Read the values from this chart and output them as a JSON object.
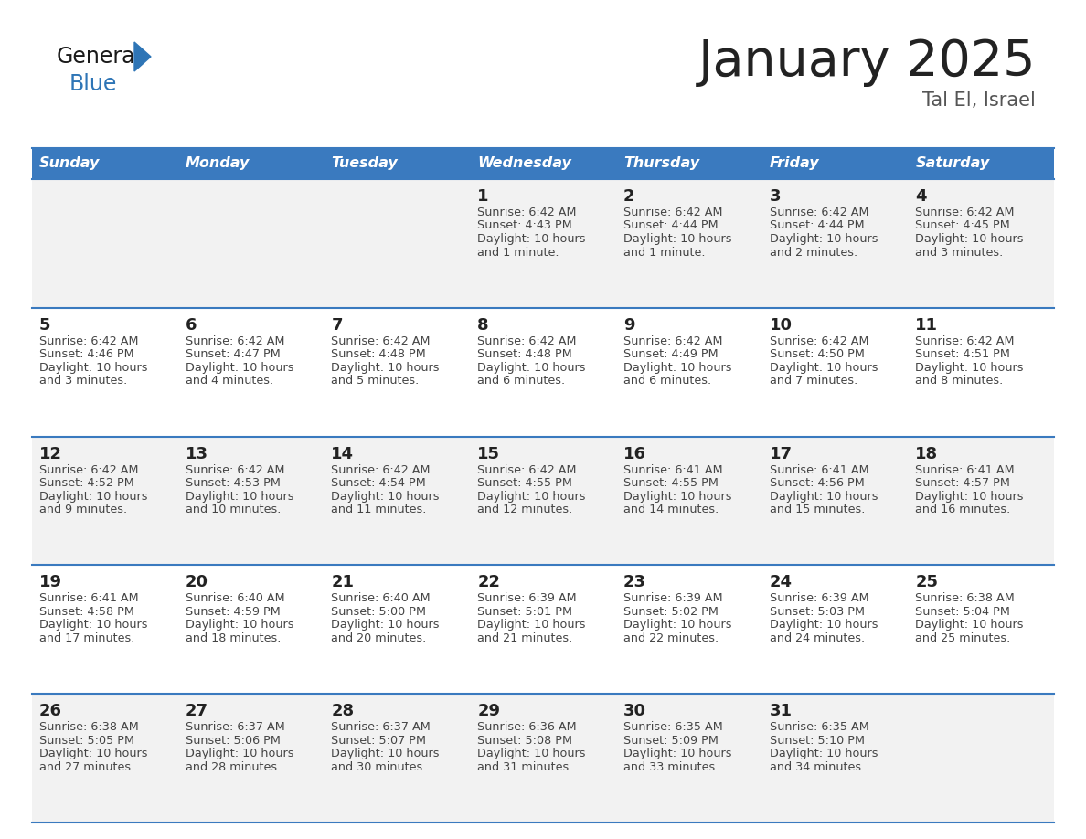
{
  "title": "January 2025",
  "subtitle": "Tal El, Israel",
  "header_bg": "#3a7abf",
  "header_text_color": "#ffffff",
  "cell_bg_odd": "#f2f2f2",
  "cell_bg_even": "#ffffff",
  "day_text_color": "#222222",
  "info_text_color": "#444444",
  "border_color": "#3a7abf",
  "days_of_week": [
    "Sunday",
    "Monday",
    "Tuesday",
    "Wednesday",
    "Thursday",
    "Friday",
    "Saturday"
  ],
  "calendar": [
    [
      {
        "day": null,
        "sunrise": null,
        "sunset": null,
        "daylight": null
      },
      {
        "day": null,
        "sunrise": null,
        "sunset": null,
        "daylight": null
      },
      {
        "day": null,
        "sunrise": null,
        "sunset": null,
        "daylight": null
      },
      {
        "day": 1,
        "sunrise": "6:42 AM",
        "sunset": "4:43 PM",
        "daylight": "10 hours and 1 minute."
      },
      {
        "day": 2,
        "sunrise": "6:42 AM",
        "sunset": "4:44 PM",
        "daylight": "10 hours and 1 minute."
      },
      {
        "day": 3,
        "sunrise": "6:42 AM",
        "sunset": "4:44 PM",
        "daylight": "10 hours and 2 minutes."
      },
      {
        "day": 4,
        "sunrise": "6:42 AM",
        "sunset": "4:45 PM",
        "daylight": "10 hours and 3 minutes."
      }
    ],
    [
      {
        "day": 5,
        "sunrise": "6:42 AM",
        "sunset": "4:46 PM",
        "daylight": "10 hours and 3 minutes."
      },
      {
        "day": 6,
        "sunrise": "6:42 AM",
        "sunset": "4:47 PM",
        "daylight": "10 hours and 4 minutes."
      },
      {
        "day": 7,
        "sunrise": "6:42 AM",
        "sunset": "4:48 PM",
        "daylight": "10 hours and 5 minutes."
      },
      {
        "day": 8,
        "sunrise": "6:42 AM",
        "sunset": "4:48 PM",
        "daylight": "10 hours and 6 minutes."
      },
      {
        "day": 9,
        "sunrise": "6:42 AM",
        "sunset": "4:49 PM",
        "daylight": "10 hours and 6 minutes."
      },
      {
        "day": 10,
        "sunrise": "6:42 AM",
        "sunset": "4:50 PM",
        "daylight": "10 hours and 7 minutes."
      },
      {
        "day": 11,
        "sunrise": "6:42 AM",
        "sunset": "4:51 PM",
        "daylight": "10 hours and 8 minutes."
      }
    ],
    [
      {
        "day": 12,
        "sunrise": "6:42 AM",
        "sunset": "4:52 PM",
        "daylight": "10 hours and 9 minutes."
      },
      {
        "day": 13,
        "sunrise": "6:42 AM",
        "sunset": "4:53 PM",
        "daylight": "10 hours and 10 minutes."
      },
      {
        "day": 14,
        "sunrise": "6:42 AM",
        "sunset": "4:54 PM",
        "daylight": "10 hours and 11 minutes."
      },
      {
        "day": 15,
        "sunrise": "6:42 AM",
        "sunset": "4:55 PM",
        "daylight": "10 hours and 12 minutes."
      },
      {
        "day": 16,
        "sunrise": "6:41 AM",
        "sunset": "4:55 PM",
        "daylight": "10 hours and 14 minutes."
      },
      {
        "day": 17,
        "sunrise": "6:41 AM",
        "sunset": "4:56 PM",
        "daylight": "10 hours and 15 minutes."
      },
      {
        "day": 18,
        "sunrise": "6:41 AM",
        "sunset": "4:57 PM",
        "daylight": "10 hours and 16 minutes."
      }
    ],
    [
      {
        "day": 19,
        "sunrise": "6:41 AM",
        "sunset": "4:58 PM",
        "daylight": "10 hours and 17 minutes."
      },
      {
        "day": 20,
        "sunrise": "6:40 AM",
        "sunset": "4:59 PM",
        "daylight": "10 hours and 18 minutes."
      },
      {
        "day": 21,
        "sunrise": "6:40 AM",
        "sunset": "5:00 PM",
        "daylight": "10 hours and 20 minutes."
      },
      {
        "day": 22,
        "sunrise": "6:39 AM",
        "sunset": "5:01 PM",
        "daylight": "10 hours and 21 minutes."
      },
      {
        "day": 23,
        "sunrise": "6:39 AM",
        "sunset": "5:02 PM",
        "daylight": "10 hours and 22 minutes."
      },
      {
        "day": 24,
        "sunrise": "6:39 AM",
        "sunset": "5:03 PM",
        "daylight": "10 hours and 24 minutes."
      },
      {
        "day": 25,
        "sunrise": "6:38 AM",
        "sunset": "5:04 PM",
        "daylight": "10 hours and 25 minutes."
      }
    ],
    [
      {
        "day": 26,
        "sunrise": "6:38 AM",
        "sunset": "5:05 PM",
        "daylight": "10 hours and 27 minutes."
      },
      {
        "day": 27,
        "sunrise": "6:37 AM",
        "sunset": "5:06 PM",
        "daylight": "10 hours and 28 minutes."
      },
      {
        "day": 28,
        "sunrise": "6:37 AM",
        "sunset": "5:07 PM",
        "daylight": "10 hours and 30 minutes."
      },
      {
        "day": 29,
        "sunrise": "6:36 AM",
        "sunset": "5:08 PM",
        "daylight": "10 hours and 31 minutes."
      },
      {
        "day": 30,
        "sunrise": "6:35 AM",
        "sunset": "5:09 PM",
        "daylight": "10 hours and 33 minutes."
      },
      {
        "day": 31,
        "sunrise": "6:35 AM",
        "sunset": "5:10 PM",
        "daylight": "10 hours and 34 minutes."
      },
      {
        "day": null,
        "sunrise": null,
        "sunset": null,
        "daylight": null
      }
    ]
  ],
  "logo_general_color": "#1a1a1a",
  "logo_blue_color": "#2e75b6",
  "title_fontsize": 40,
  "subtitle_fontsize": 15,
  "header_fontsize": 11.5,
  "day_num_fontsize": 13,
  "info_fontsize": 9.2
}
